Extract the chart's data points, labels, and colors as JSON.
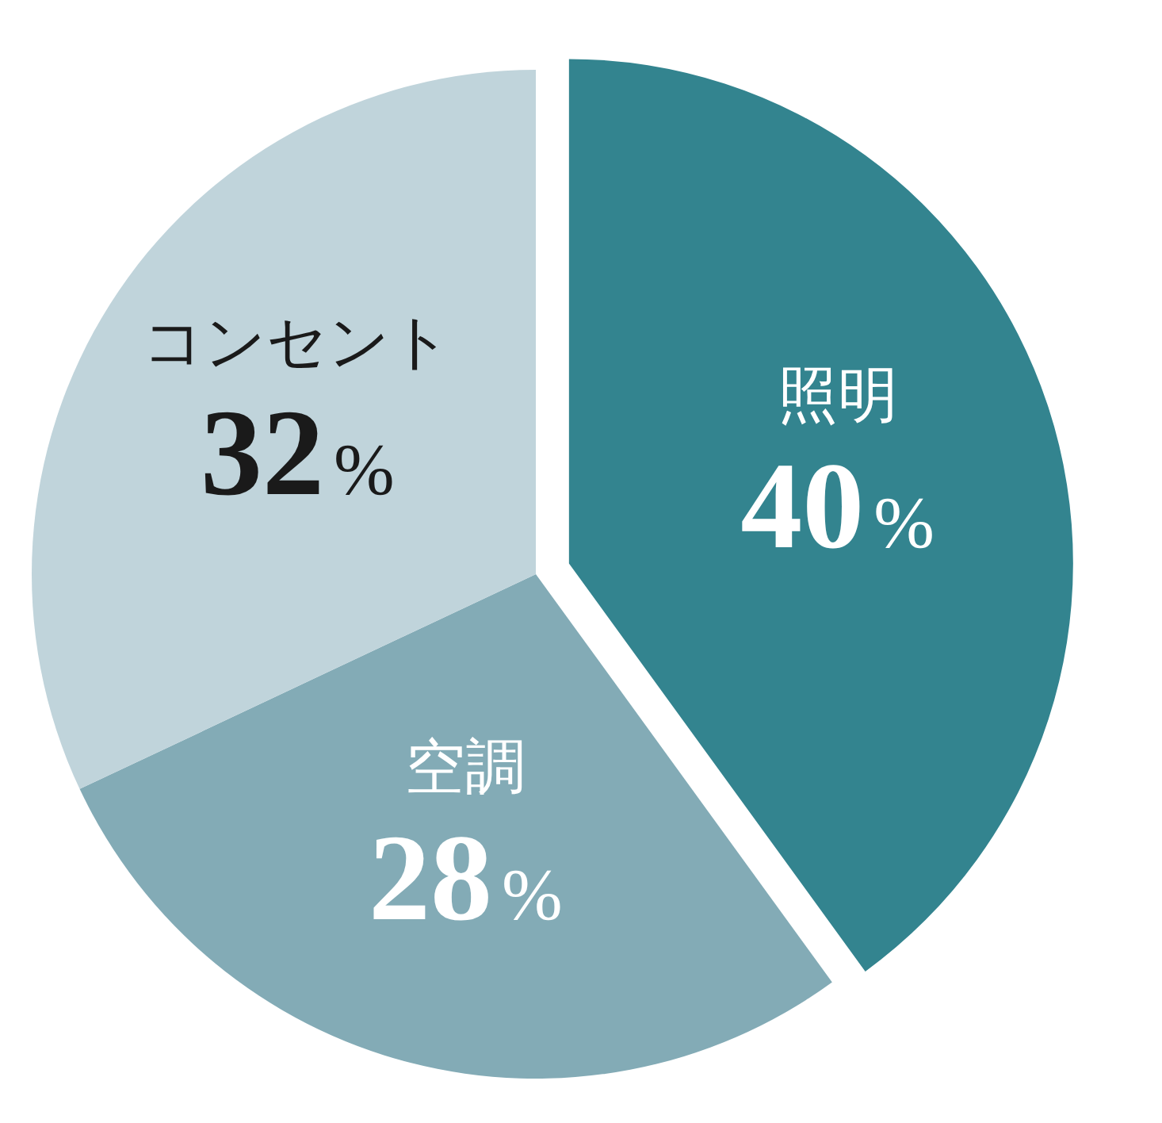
{
  "chart_data": {
    "type": "pie",
    "categories": [
      "照明",
      "空調",
      "コンセント"
    ],
    "values": [
      40,
      28,
      32
    ],
    "colors": [
      "#33848f",
      "#83abb6",
      "#c0d4db"
    ],
    "value_labels": [
      "40%",
      "28%",
      "32%"
    ]
  }
}
